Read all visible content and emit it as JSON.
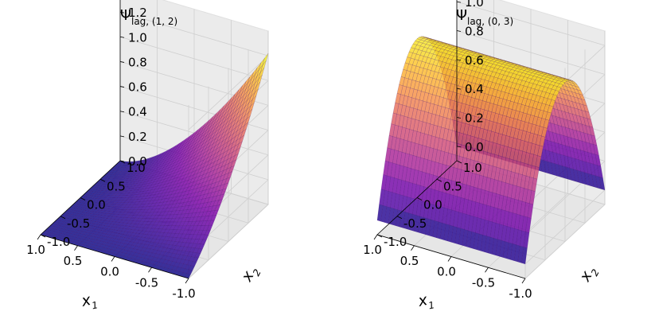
{
  "chart_data": [
    {
      "type": "surface3d",
      "title": {
        "main": "Ψ",
        "sub": "lag, (1, 2)"
      },
      "xlabel": {
        "main": "x",
        "sub": "1"
      },
      "ylabel": {
        "main": "x",
        "sub": "2"
      },
      "colormap": "plasma",
      "xlim": [
        -1.0,
        1.0
      ],
      "ylim": [
        -1.0,
        1.0
      ],
      "zlim": [
        0.0,
        1.3
      ],
      "xticks": [
        "-1.0",
        "-0.5",
        "0.0",
        "0.5",
        "1.0"
      ],
      "yticks": [
        "-1.0",
        "-0.5",
        "0.0",
        "0.5",
        "1.0"
      ],
      "zticks": [
        "0.0",
        "0.2",
        "0.4",
        "0.6",
        "0.8",
        "1.0",
        "1.2"
      ],
      "function": "0.5*x1*(x1-1)*x2*(x2+1)... shaped: peak 1.2 at x1=-1, x2=1 decaying to 0 near x1=1"
    },
    {
      "type": "surface3d",
      "title": {
        "main": "Ψ",
        "sub": "lag, (0, 3)"
      },
      "xlabel": {
        "main": "x",
        "sub": "1"
      },
      "ylabel": {
        "main": "x",
        "sub": "2"
      },
      "colormap": "plasma",
      "xlim": [
        -1.0,
        1.0
      ],
      "ylim": [
        -1.0,
        1.0
      ],
      "zlim": [
        -0.1,
        1.05
      ],
      "xticks": [
        "-1.0",
        "-0.5",
        "0.0",
        "0.5",
        "1.0"
      ],
      "yticks": [
        "-1.0",
        "-0.5",
        "0.0",
        "0.5",
        "1.0"
      ],
      "zticks": [
        "0.0",
        "0.2",
        "0.4",
        "0.6",
        "0.8",
        "1.0"
      ],
      "function": "1 - x2^2 (ridge constant along x1, peak 1.0 at x2=0)"
    }
  ]
}
